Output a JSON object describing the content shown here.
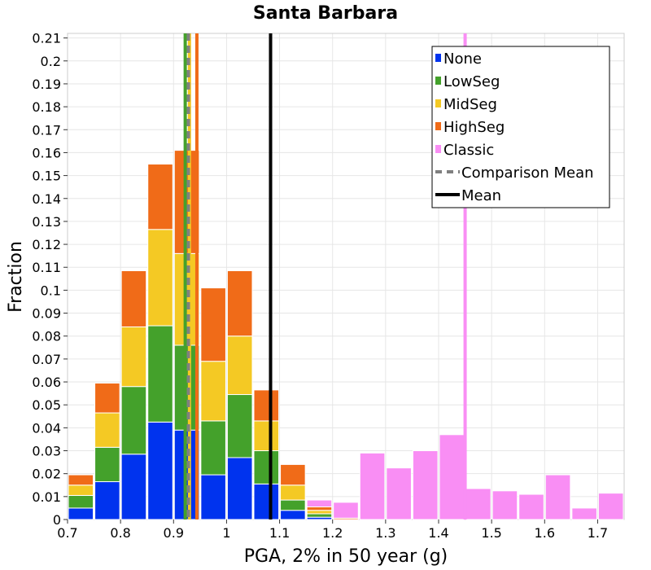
{
  "chart_data": {
    "type": "bar",
    "stacked": true,
    "title": "Santa Barbara",
    "xlabel": "PGA, 2% in 50 year (g)",
    "ylabel": "Fraction",
    "xlim": [
      0.7,
      1.75
    ],
    "ylim": [
      0,
      0.212
    ],
    "bin_width": 0.05,
    "grid": true,
    "legend_position": "top-right",
    "x_ticks": [
      "0.7",
      "0.8",
      "0.9",
      "1",
      "1.1",
      "1.2",
      "1.3",
      "1.4",
      "1.5",
      "1.6",
      "1.7"
    ],
    "x_tick_values": [
      0.7,
      0.8,
      0.9,
      1.0,
      1.1,
      1.2,
      1.3,
      1.4,
      1.5,
      1.6,
      1.7
    ],
    "y_ticks": [
      "0",
      "0.01",
      "0.02",
      "0.03",
      "0.04",
      "0.05",
      "0.06",
      "0.07",
      "0.08",
      "0.09",
      "0.1",
      "0.11",
      "0.12",
      "0.13",
      "0.14",
      "0.15",
      "0.16",
      "0.17",
      "0.18",
      "0.19",
      "0.2",
      "0.21"
    ],
    "y_tick_values": [
      0,
      0.01,
      0.02,
      0.03,
      0.04,
      0.05,
      0.06,
      0.07,
      0.08,
      0.09,
      0.1,
      0.11,
      0.12,
      0.13,
      0.14,
      0.15,
      0.16,
      0.17,
      0.18,
      0.19,
      0.2,
      0.21
    ],
    "bin_starts": [
      0.7,
      0.75,
      0.8,
      0.85,
      0.9,
      0.95,
      1.0,
      1.05,
      1.1,
      1.15,
      1.2
    ],
    "series": [
      {
        "name": "None",
        "color": "#0033ee",
        "values": [
          0.005,
          0.0165,
          0.0285,
          0.0425,
          0.039,
          0.0195,
          0.027,
          0.0155,
          0.004,
          0.001,
          0
        ]
      },
      {
        "name": "LowSeg",
        "color": "#44a12b",
        "values": [
          0.0055,
          0.015,
          0.0295,
          0.042,
          0.037,
          0.0235,
          0.0275,
          0.0145,
          0.0045,
          0.0015,
          0
        ]
      },
      {
        "name": "MidSeg",
        "color": "#f4c924",
        "values": [
          0.0045,
          0.015,
          0.026,
          0.042,
          0.04,
          0.026,
          0.0255,
          0.013,
          0.0065,
          0.0015,
          0
        ]
      },
      {
        "name": "HighSeg",
        "color": "#f06b18",
        "values": [
          0.0045,
          0.013,
          0.0245,
          0.0285,
          0.045,
          0.032,
          0.0285,
          0.0135,
          0.009,
          0.0015,
          0.0006
        ]
      }
    ],
    "classic": {
      "name": "Classic",
      "color": "#f98ef4",
      "bin_starts": [
        1.15,
        1.2,
        1.25,
        1.3,
        1.35,
        1.4,
        1.45,
        1.5,
        1.55,
        1.6,
        1.65,
        1.7
      ],
      "values": [
        0.0085,
        0.0075,
        0.029,
        0.0225,
        0.03,
        0.037,
        0.0135,
        0.0125,
        0.011,
        0.0195,
        0.005,
        0.0115
      ]
    },
    "vertical_lines": [
      {
        "name": "LowSeg mean",
        "x": 0.922,
        "color": "#44a12b",
        "style": "solid"
      },
      {
        "name": "MidSeg mean",
        "x": 0.93,
        "color": "#f4c924",
        "style": "solid"
      },
      {
        "name": "HighSeg mean",
        "x": 0.944,
        "color": "#f06b18",
        "style": "solid"
      },
      {
        "name": "Classic mean",
        "x": 1.45,
        "color": "#f98ef4",
        "style": "solid"
      },
      {
        "name": "Comparison Mean",
        "x": 0.928,
        "color": "#808080",
        "style": "dashed"
      },
      {
        "name": "Mean",
        "x": 1.083,
        "color": "#000000",
        "style": "solid"
      }
    ],
    "legend": [
      {
        "label": "None",
        "color": "#0033ee",
        "kind": "box"
      },
      {
        "label": "LowSeg",
        "color": "#44a12b",
        "kind": "box"
      },
      {
        "label": "MidSeg",
        "color": "#f4c924",
        "kind": "box"
      },
      {
        "label": "HighSeg",
        "color": "#f06b18",
        "kind": "box"
      },
      {
        "label": "Classic",
        "color": "#f98ef4",
        "kind": "box"
      },
      {
        "label": "Comparison Mean",
        "color": "#808080",
        "kind": "dashed"
      },
      {
        "label": "Mean",
        "color": "#000000",
        "kind": "solid"
      }
    ]
  }
}
